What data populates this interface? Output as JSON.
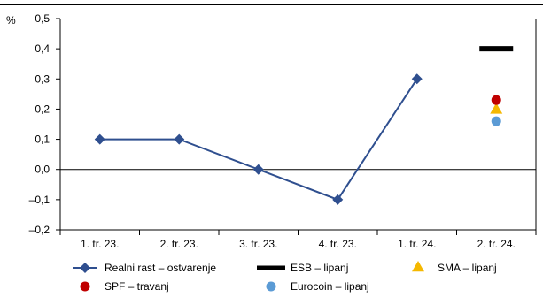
{
  "chart_data": {
    "type": "line",
    "unit_label": "%",
    "categories": [
      "1. tr. 23.",
      "2. tr. 23.",
      "3. tr. 23.",
      "4. tr. 23.",
      "1. tr. 24.",
      "2. tr. 24."
    ],
    "ylim": [
      -0.2,
      0.5
    ],
    "yticks": [
      -0.2,
      -0.1,
      0.0,
      0.1,
      0.2,
      0.3,
      0.4,
      0.5
    ],
    "ytick_labels": [
      "–0,2",
      "–0,1",
      "0,0",
      "0,1",
      "0,2",
      "0,3",
      "0,4",
      "0,5"
    ],
    "grid": false,
    "zero_line": true,
    "legend_position": "bottom",
    "series": [
      {
        "name": "Realni rast – ostvarenje",
        "kind": "line",
        "marker": "diamond",
        "color": "#2f4f8f",
        "values": [
          0.1,
          0.1,
          0.0,
          -0.1,
          0.3,
          null
        ]
      }
    ],
    "forecasts": [
      {
        "name": "ESB – lipanj",
        "marker": "dash",
        "color": "#000000",
        "category": "2. tr. 24.",
        "value": 0.4
      },
      {
        "name": "SMA – lipanj",
        "marker": "triangle",
        "color": "#f5b800",
        "category": "2. tr. 24.",
        "value": 0.2
      },
      {
        "name": "SPF – travanj",
        "marker": "circle",
        "color": "#c00000",
        "category": "2. tr. 24.",
        "value": 0.23
      },
      {
        "name": "Eurocoin – lipanj",
        "marker": "circle",
        "color": "#5b9bd5",
        "category": "2. tr. 24.",
        "value": 0.16
      }
    ]
  }
}
